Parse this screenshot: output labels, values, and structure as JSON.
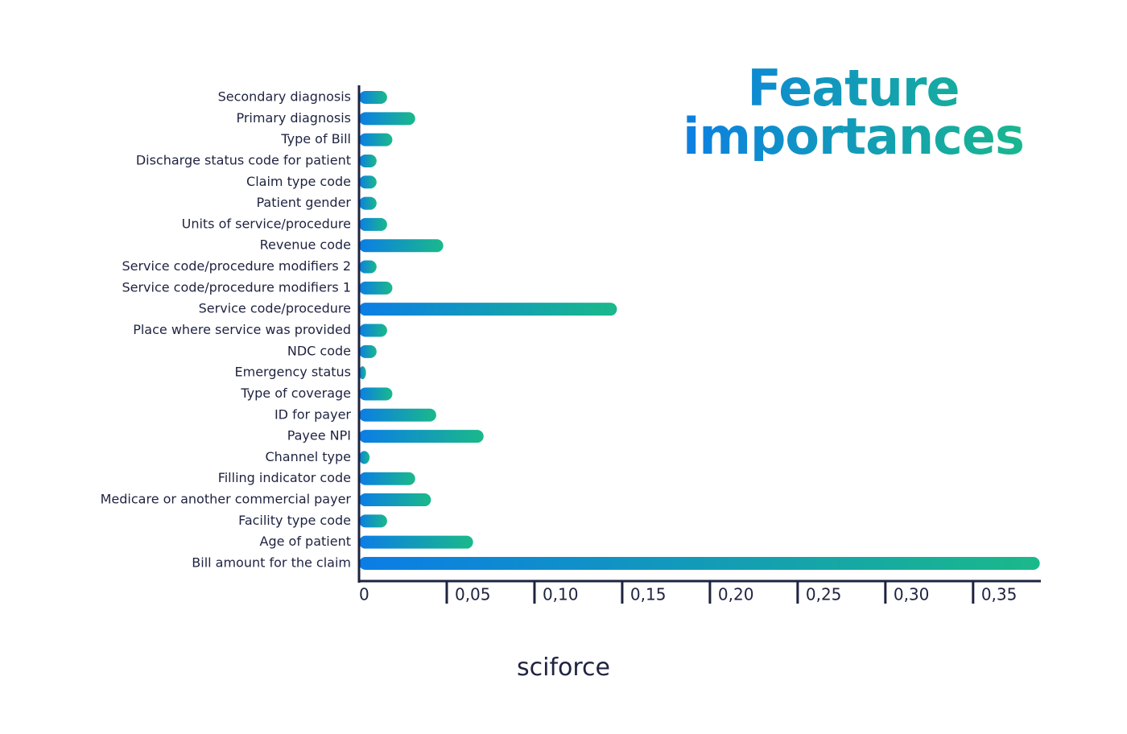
{
  "chart_data": {
    "type": "barh",
    "title": "Feature importances",
    "categories": [
      "Secondary diagnosis",
      "Primary diagnosis",
      "Type of Bill",
      "Discharge status code for patient",
      "Claim type code",
      "Patient gender",
      "Units of service/procedure",
      "Revenue code",
      "Service code/procedure modifiers 2",
      "Service code/procedure modifiers 1",
      "Service code/procedure",
      "Place where service was provided",
      "NDC code",
      "Emergency status",
      "Type of coverage",
      "ID for payer",
      "Payee NPI",
      "Channel type",
      "Filling indicator code",
      "Medicare or another commercial payer",
      "Facility type code",
      "Age of patient",
      "Bill amount for the claim"
    ],
    "values": [
      0.016,
      0.032,
      0.019,
      0.01,
      0.01,
      0.01,
      0.016,
      0.048,
      0.01,
      0.019,
      0.147,
      0.016,
      0.01,
      0.004,
      0.019,
      0.044,
      0.071,
      0.006,
      0.032,
      0.041,
      0.016,
      0.065,
      0.388
    ],
    "color": [
      "#0b7de6",
      "#1ab98a"
    ],
    "xlim": [
      0,
      0.39
    ],
    "xticks": [
      0,
      {
        "value": 0.05,
        "label": "0,05"
      },
      {
        "value": 0.1,
        "label": "0,10"
      },
      {
        "value": 0.15,
        "label": "0,15"
      },
      {
        "value": 0.2,
        "label": "0,20"
      },
      {
        "value": 0.25,
        "label": "0,25"
      },
      {
        "value": 0.3,
        "label": "0,30"
      },
      {
        "value": 0.35,
        "label": "0,35"
      }
    ],
    "logo": "sciforce"
  }
}
